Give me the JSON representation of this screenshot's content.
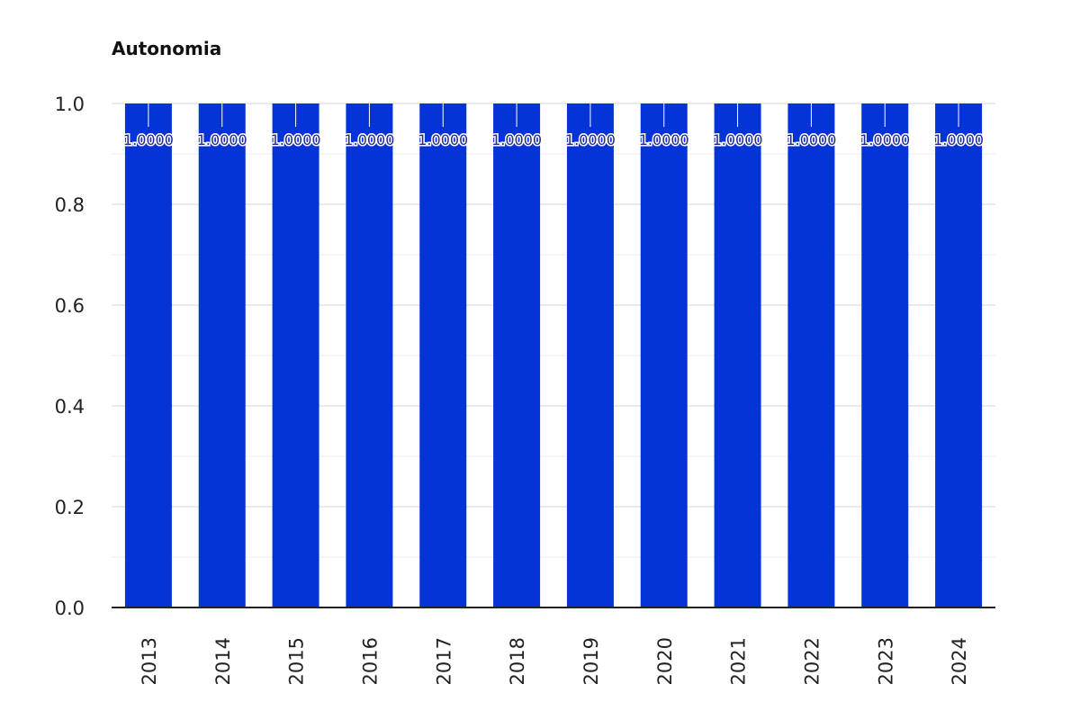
{
  "chart_data": {
    "type": "bar",
    "title": "Autonomia",
    "xlabel": "",
    "ylabel": "",
    "categories": [
      "2013",
      "2014",
      "2015",
      "2016",
      "2017",
      "2018",
      "2019",
      "2020",
      "2021",
      "2022",
      "2023",
      "2024"
    ],
    "values": [
      1.0,
      1.0,
      1.0,
      1.0,
      1.0,
      1.0,
      1.0,
      1.0,
      1.0,
      1.0,
      1.0,
      1.0
    ],
    "data_labels": [
      "1.0000",
      "1.0000",
      "1.0000",
      "1.0000",
      "1.0000",
      "1.0000",
      "1.0000",
      "1.0000",
      "1.0000",
      "1.0000",
      "1.0000",
      "1.0000"
    ],
    "y_ticks": [
      "0.0",
      "0.2",
      "0.4",
      "0.6",
      "0.8",
      "1.0"
    ],
    "ylim": [
      0,
      1.0
    ],
    "grid": true,
    "legend": "none",
    "colors": {
      "bar": "#0433d8",
      "grid": "#d4d4d4",
      "minor_grid": "#ececec",
      "axis": "#222222"
    }
  }
}
